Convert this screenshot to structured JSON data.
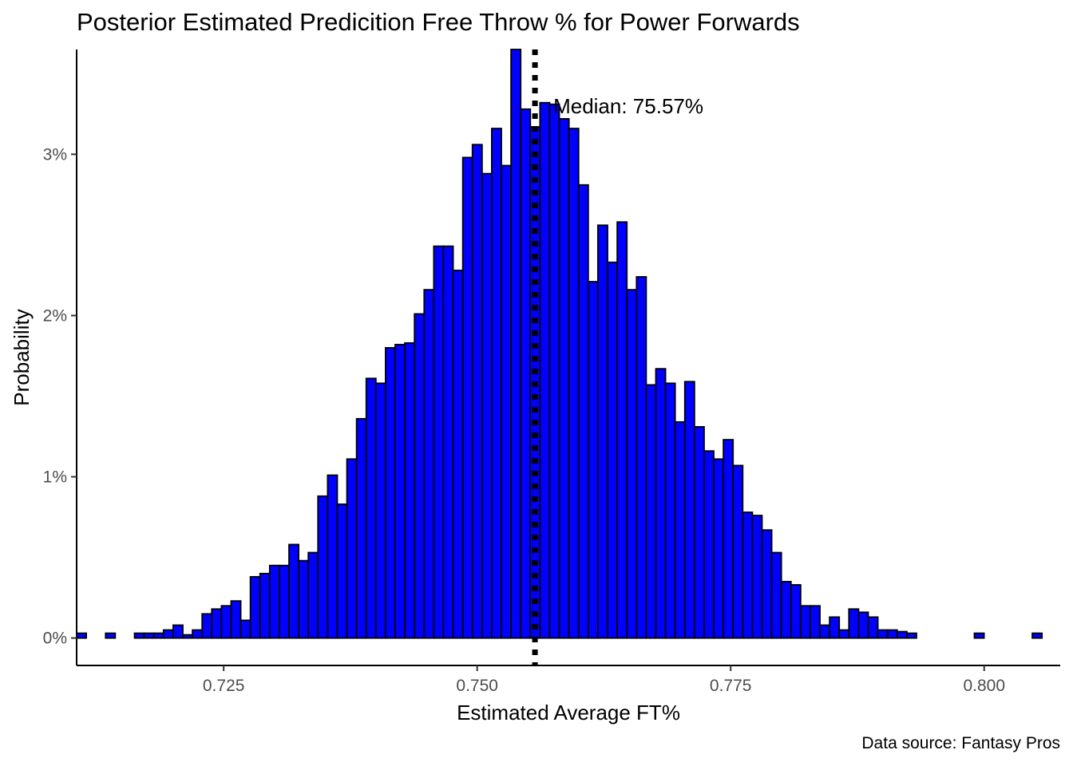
{
  "chart_data": {
    "type": "bar",
    "title": "Posterior Estimated Predicition Free Throw % for Power Forwards",
    "xlabel": "Estimated Average FT%",
    "ylabel": "Probability",
    "caption": "Data source: Fantasy Pros",
    "annotation": "Median: 75.57%",
    "median": 0.7557,
    "bin_width": 0.000952,
    "bin_start": 0.7105,
    "xlim": [
      0.7105,
      0.8075
    ],
    "ylim": [
      -0.0017,
      0.0365
    ],
    "x_ticks": [
      0.725,
      0.75,
      0.775,
      0.8
    ],
    "x_tick_labels": [
      "0.725",
      "0.750",
      "0.775",
      "0.800"
    ],
    "y_ticks": [
      0,
      0.01,
      0.02,
      0.03
    ],
    "y_tick_labels": [
      "0%",
      "1%",
      "2%",
      "3%"
    ],
    "grid": false,
    "colors": {
      "bar_fill": "#0000FF",
      "bar_stroke": "#000000",
      "median_line": "#000000"
    },
    "values": [
      0.0003,
      0,
      0,
      0.0003,
      0,
      0,
      0.0003,
      0.0003,
      0.0003,
      0.0005,
      0.0008,
      0.0002,
      0.0005,
      0.0015,
      0.0018,
      0.002,
      0.0023,
      0.0011,
      0.0038,
      0.004,
      0.0045,
      0.0045,
      0.0058,
      0.0048,
      0.0053,
      0.0088,
      0.0101,
      0.0083,
      0.0111,
      0.0136,
      0.0161,
      0.0158,
      0.018,
      0.0182,
      0.0183,
      0.0201,
      0.0216,
      0.0243,
      0.0243,
      0.0228,
      0.0298,
      0.0306,
      0.0288,
      0.0316,
      0.0293,
      0.0365,
      0.0328,
      0.0317,
      0.0332,
      0.0331,
      0.0322,
      0.0316,
      0.0281,
      0.0221,
      0.0256,
      0.0233,
      0.0258,
      0.0216,
      0.0224,
      0.0157,
      0.0167,
      0.0158,
      0.0134,
      0.0159,
      0.0131,
      0.0116,
      0.0111,
      0.0123,
      0.0107,
      0.0078,
      0.0076,
      0.0067,
      0.0053,
      0.0035,
      0.0033,
      0.002,
      0.002,
      0.0008,
      0.0013,
      0.0005,
      0.0018,
      0.0016,
      0.0013,
      0.0005,
      0.0005,
      0.0004,
      0.0003,
      0,
      0,
      0,
      0,
      0,
      0,
      0.0003,
      0,
      0,
      0,
      0,
      0,
      0.0003
    ]
  }
}
